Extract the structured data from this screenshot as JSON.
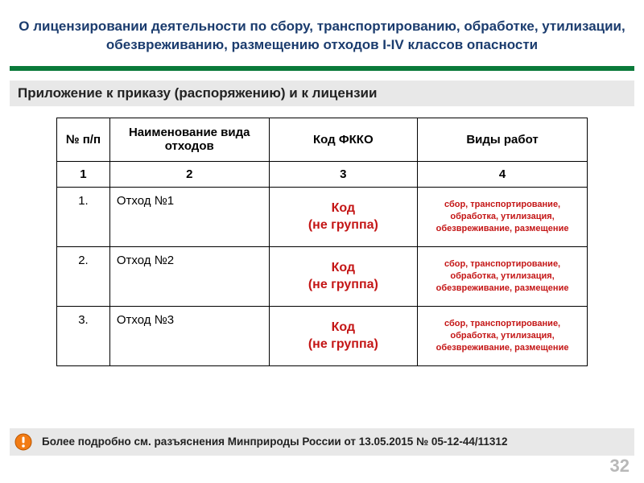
{
  "colors": {
    "title": "#1b3c6e",
    "green_bar": "#0a7a3a",
    "gray_bar": "#e8e8e8",
    "red_text": "#c41616",
    "page_num": "#b8b8b8",
    "border": "#000000",
    "bg": "#ffffff"
  },
  "title": "О лицензировании деятельности по сбору, транспортированию, обработке, утилизации, обезвреживанию, размещению отходов I-IV классов опасности",
  "subtitle": "Приложение к приказу (распоряжению) и к лицензии",
  "table": {
    "headers": [
      "№ п/п",
      "Наименование вида отходов",
      "Код ФККО",
      "Виды  работ"
    ],
    "index_row": [
      "1",
      "2",
      "3",
      "4"
    ],
    "column_widths_pct": [
      10,
      30,
      28,
      32
    ],
    "rows": [
      {
        "num": "1.",
        "name": "Отход №1",
        "code": "Код\n(не группа)",
        "work": "сбор, транспортирование, обработка, утилизация, обезвреживание, размещение"
      },
      {
        "num": "2.",
        "name": "Отход №2",
        "code": "Код\n(не группа)",
        "work": "сбор, транспортирование, обработка, утилизация, обезвреживание, размещение"
      },
      {
        "num": "3.",
        "name": "Отход №3",
        "code": "Код\n(не группа)",
        "work": "сбор, транспортирование, обработка, утилизация, обезвреживание, размещение"
      }
    ]
  },
  "footer": "Более подробно см. разъяснения Минприроды России от 13.05.2015 № 05-12-44/11312",
  "page_number": "32",
  "icon": {
    "name": "exclamation-bullet",
    "fill": "#f27b13",
    "glyph_color": "#ffffff"
  }
}
